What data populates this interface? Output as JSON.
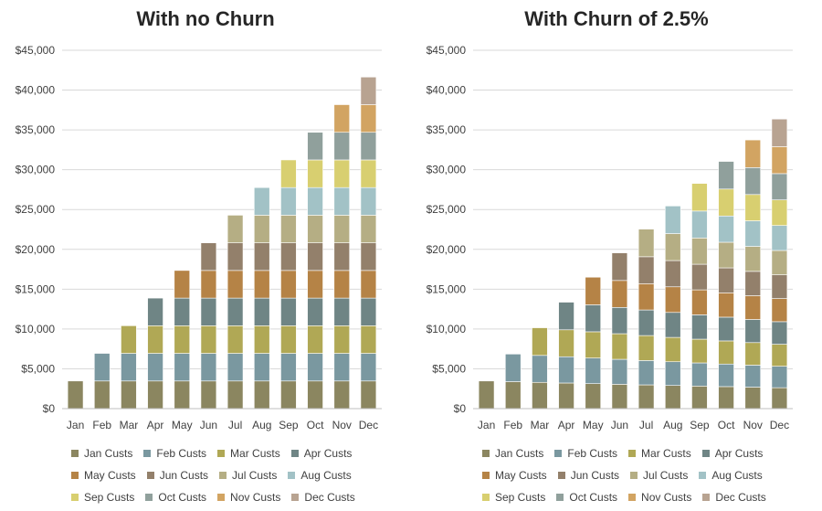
{
  "chart_data": [
    {
      "type": "bar",
      "stacked": true,
      "title": "With no Churn",
      "categories": [
        "Jan",
        "Feb",
        "Mar",
        "Apr",
        "May",
        "Jun",
        "Jul",
        "Aug",
        "Sep",
        "Oct",
        "Nov",
        "Dec"
      ],
      "ylim": [
        0,
        45000
      ],
      "yticks": [
        "$0",
        "$5,000",
        "$10,000",
        "$15,000",
        "$20,000",
        "$25,000",
        "$30,000",
        "$35,000",
        "$40,000",
        "$45,000"
      ],
      "grid": true,
      "legend_position": "bottom",
      "series": [
        {
          "name": "Jan Custs",
          "color": "#8b8660",
          "values": [
            3470,
            3470,
            3470,
            3470,
            3470,
            3470,
            3470,
            3470,
            3470,
            3470,
            3470,
            3470
          ]
        },
        {
          "name": "Feb Custs",
          "color": "#7a98a0",
          "values": [
            0,
            3470,
            3470,
            3470,
            3470,
            3470,
            3470,
            3470,
            3470,
            3470,
            3470,
            3470
          ]
        },
        {
          "name": "Mar Custs",
          "color": "#b0a855",
          "values": [
            0,
            0,
            3470,
            3470,
            3470,
            3470,
            3470,
            3470,
            3470,
            3470,
            3470,
            3470
          ]
        },
        {
          "name": "Apr Custs",
          "color": "#6f8585",
          "values": [
            0,
            0,
            0,
            3470,
            3470,
            3470,
            3470,
            3470,
            3470,
            3470,
            3470,
            3470
          ]
        },
        {
          "name": "May Custs",
          "color": "#b58346",
          "values": [
            0,
            0,
            0,
            0,
            3470,
            3470,
            3470,
            3470,
            3470,
            3470,
            3470,
            3470
          ]
        },
        {
          "name": "Jun Custs",
          "color": "#93806b",
          "values": [
            0,
            0,
            0,
            0,
            0,
            3470,
            3470,
            3470,
            3470,
            3470,
            3470,
            3470
          ]
        },
        {
          "name": "Jul Custs",
          "color": "#b5ae84",
          "values": [
            0,
            0,
            0,
            0,
            0,
            0,
            3470,
            3470,
            3470,
            3470,
            3470,
            3470
          ]
        },
        {
          "name": "Aug Custs",
          "color": "#a2c2c6",
          "values": [
            0,
            0,
            0,
            0,
            0,
            0,
            0,
            3470,
            3470,
            3470,
            3470,
            3470
          ]
        },
        {
          "name": "Sep Custs",
          "color": "#d8cf70",
          "values": [
            0,
            0,
            0,
            0,
            0,
            0,
            0,
            0,
            3470,
            3470,
            3470,
            3470
          ]
        },
        {
          "name": "Oct Custs",
          "color": "#90a09c",
          "values": [
            0,
            0,
            0,
            0,
            0,
            0,
            0,
            0,
            0,
            3470,
            3470,
            3470
          ]
        },
        {
          "name": "Nov Custs",
          "color": "#d2a462",
          "values": [
            0,
            0,
            0,
            0,
            0,
            0,
            0,
            0,
            0,
            0,
            3470,
            3470
          ]
        },
        {
          "name": "Dec Custs",
          "color": "#b8a391",
          "values": [
            0,
            0,
            0,
            0,
            0,
            0,
            0,
            0,
            0,
            0,
            0,
            3470
          ]
        }
      ]
    },
    {
      "type": "bar",
      "stacked": true,
      "title": "With Churn of 2.5%",
      "categories": [
        "Jan",
        "Feb",
        "Mar",
        "Apr",
        "May",
        "Jun",
        "Jul",
        "Aug",
        "Sep",
        "Oct",
        "Nov",
        "Dec"
      ],
      "ylim": [
        0,
        45000
      ],
      "yticks": [
        "$0",
        "$5,000",
        "$10,000",
        "$15,000",
        "$20,000",
        "$25,000",
        "$30,000",
        "$35,000",
        "$40,000",
        "$45,000"
      ],
      "grid": true,
      "legend_position": "bottom",
      "series": [
        {
          "name": "Jan Custs",
          "color": "#8b8660",
          "values": [
            3470,
            3383,
            3299,
            3216,
            3136,
            3057,
            2981,
            2906,
            2834,
            2763,
            2694,
            2626
          ]
        },
        {
          "name": "Feb Custs",
          "color": "#7a98a0",
          "values": [
            0,
            3470,
            3383,
            3299,
            3216,
            3136,
            3057,
            2981,
            2906,
            2834,
            2763,
            2694
          ]
        },
        {
          "name": "Mar Custs",
          "color": "#b0a855",
          "values": [
            0,
            0,
            3470,
            3383,
            3299,
            3216,
            3136,
            3057,
            2981,
            2906,
            2834,
            2763
          ]
        },
        {
          "name": "Apr Custs",
          "color": "#6f8585",
          "values": [
            0,
            0,
            0,
            3470,
            3383,
            3299,
            3216,
            3136,
            3057,
            2981,
            2906,
            2834
          ]
        },
        {
          "name": "May Custs",
          "color": "#b58346",
          "values": [
            0,
            0,
            0,
            0,
            3470,
            3383,
            3299,
            3216,
            3136,
            3057,
            2981,
            2906
          ]
        },
        {
          "name": "Jun Custs",
          "color": "#93806b",
          "values": [
            0,
            0,
            0,
            0,
            0,
            3470,
            3383,
            3299,
            3216,
            3136,
            3057,
            2981
          ]
        },
        {
          "name": "Jul Custs",
          "color": "#b5ae84",
          "values": [
            0,
            0,
            0,
            0,
            0,
            0,
            3470,
            3383,
            3299,
            3216,
            3136,
            3057
          ]
        },
        {
          "name": "Aug Custs",
          "color": "#a2c2c6",
          "values": [
            0,
            0,
            0,
            0,
            0,
            0,
            0,
            3470,
            3383,
            3299,
            3216,
            3136
          ]
        },
        {
          "name": "Sep Custs",
          "color": "#d8cf70",
          "values": [
            0,
            0,
            0,
            0,
            0,
            0,
            0,
            0,
            3470,
            3383,
            3299,
            3216
          ]
        },
        {
          "name": "Oct Custs",
          "color": "#90a09c",
          "values": [
            0,
            0,
            0,
            0,
            0,
            0,
            0,
            0,
            0,
            3470,
            3383,
            3299
          ]
        },
        {
          "name": "Nov Custs",
          "color": "#d2a462",
          "values": [
            0,
            0,
            0,
            0,
            0,
            0,
            0,
            0,
            0,
            0,
            3470,
            3383
          ]
        },
        {
          "name": "Dec Custs",
          "color": "#b8a391",
          "values": [
            0,
            0,
            0,
            0,
            0,
            0,
            0,
            0,
            0,
            0,
            0,
            3470
          ]
        }
      ]
    }
  ]
}
